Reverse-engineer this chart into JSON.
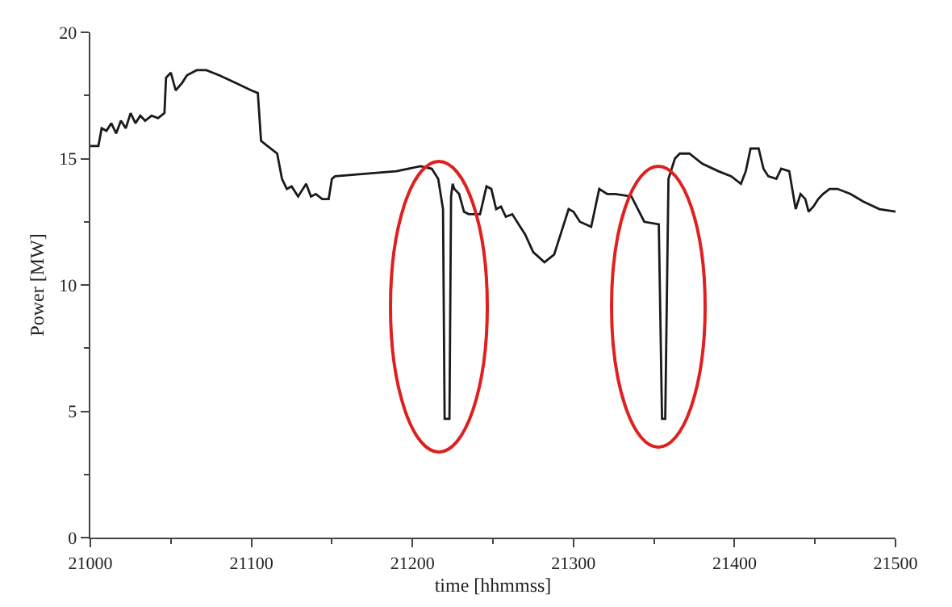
{
  "chart_data": {
    "type": "line",
    "xlabel": "time [hhmmss]",
    "ylabel": "Power [MW]",
    "xlim": [
      21000,
      21500
    ],
    "xticks": [
      21000,
      21100,
      21200,
      21300,
      21400,
      21500
    ],
    "ylim": [
      0,
      20
    ],
    "yticks": [
      0,
      5,
      10,
      15,
      20
    ],
    "grid": false,
    "marker": "none",
    "line_style": "solid",
    "series": [
      {
        "color": "#1a1a1a",
        "x": [
          21000,
          21005,
          21007,
          21010,
          21013,
          21016,
          21019,
          21022,
          21025,
          21028,
          21031,
          21034,
          21038,
          21042,
          21046,
          21047,
          21050,
          21053,
          21057,
          21060,
          21066,
          21072,
          21080,
          21090,
          21100,
          21104,
          21106,
          21110,
          21116,
          21119,
          21122,
          21125,
          21129,
          21134,
          21137,
          21140,
          21144,
          21148,
          21150,
          21152,
          21170,
          21190,
          21205,
          21212,
          21216,
          21219,
          21220,
          21223,
          21224,
          21225,
          21226,
          21229,
          21232,
          21235,
          21238,
          21242,
          21246,
          21249,
          21252,
          21255,
          21258,
          21262,
          21266,
          21270,
          21275,
          21282,
          21288,
          21292,
          21297,
          21300,
          21304,
          21311,
          21316,
          21321,
          21326,
          21336,
          21344,
          21353,
          21355,
          21357,
          21359,
          21361,
          21363,
          21366,
          21372,
          21380,
          21390,
          21398,
          21404,
          21407,
          21410,
          21415,
          21418,
          21421,
          21426,
          21429,
          21434,
          21438,
          21441,
          21444,
          21446,
          21449,
          21452,
          21455,
          21459,
          21464,
          21472,
          21480,
          21490,
          21500
        ],
        "values": [
          15.5,
          15.5,
          16.2,
          16.1,
          16.4,
          16.0,
          16.5,
          16.2,
          16.8,
          16.4,
          16.7,
          16.5,
          16.7,
          16.6,
          16.8,
          18.2,
          18.4,
          17.7,
          18.0,
          18.3,
          18.5,
          18.5,
          18.3,
          18.0,
          17.7,
          17.6,
          15.7,
          15.5,
          15.2,
          14.2,
          13.8,
          13.9,
          13.5,
          14.0,
          13.5,
          13.6,
          13.4,
          13.4,
          14.2,
          14.3,
          14.4,
          14.5,
          14.7,
          14.6,
          14.2,
          13.0,
          4.7,
          4.7,
          13.5,
          14.0,
          13.8,
          13.6,
          12.9,
          12.8,
          12.8,
          12.8,
          13.9,
          13.8,
          13.0,
          13.1,
          12.7,
          12.8,
          12.4,
          12.0,
          11.3,
          10.9,
          11.2,
          12.0,
          13.0,
          12.9,
          12.5,
          12.3,
          13.8,
          13.6,
          13.6,
          13.5,
          12.5,
          12.4,
          4.7,
          4.7,
          14.2,
          14.6,
          15.0,
          15.2,
          15.2,
          14.8,
          14.5,
          14.3,
          14.0,
          14.5,
          15.4,
          15.4,
          14.6,
          14.3,
          14.2,
          14.6,
          14.5,
          13.0,
          13.6,
          13.4,
          12.9,
          13.1,
          13.4,
          13.6,
          13.8,
          13.8,
          13.6,
          13.3,
          13.0,
          12.9
        ]
      }
    ]
  }
}
